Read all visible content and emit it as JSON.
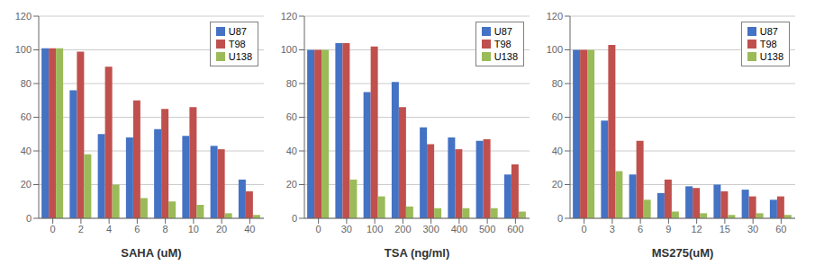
{
  "chart_data": [
    {
      "type": "bar",
      "x_label": "SAHA (uM)",
      "categories": [
        "0",
        "2",
        "4",
        "6",
        "8",
        "10",
        "20",
        "40"
      ],
      "series": [
        {
          "name": "U87",
          "color": "#4472C4",
          "values": [
            101,
            76,
            50,
            48,
            53,
            49,
            43,
            23
          ]
        },
        {
          "name": "T98",
          "color": "#C0504D",
          "values": [
            101,
            99,
            90,
            70,
            65,
            66,
            41,
            16
          ]
        },
        {
          "name": "U138",
          "color": "#9BBB59",
          "values": [
            101,
            38,
            20,
            12,
            10,
            8,
            3,
            2
          ]
        }
      ],
      "ylim": [
        0,
        120
      ],
      "yticks": [
        0,
        20,
        40,
        60,
        80,
        100,
        120
      ],
      "grid": true,
      "legend": "upper right"
    },
    {
      "type": "bar",
      "x_label": "TSA (ng/ml)",
      "categories": [
        "0",
        "30",
        "100",
        "200",
        "300",
        "400",
        "500",
        "600"
      ],
      "series": [
        {
          "name": "U87",
          "color": "#4472C4",
          "values": [
            100,
            104,
            75,
            81,
            54,
            48,
            46,
            26
          ]
        },
        {
          "name": "T98",
          "color": "#C0504D",
          "values": [
            100,
            104,
            102,
            66,
            44,
            41,
            47,
            32
          ]
        },
        {
          "name": "U138",
          "color": "#9BBB59",
          "values": [
            100,
            23,
            13,
            7,
            6,
            6,
            6,
            4
          ]
        }
      ],
      "ylim": [
        0,
        120
      ],
      "yticks": [
        0,
        20,
        40,
        60,
        80,
        100,
        120
      ],
      "grid": true,
      "legend": "upper right"
    },
    {
      "type": "bar",
      "x_label": "MS275(uM)",
      "categories": [
        "0",
        "3",
        "6",
        "9",
        "12",
        "15",
        "30",
        "60"
      ],
      "series": [
        {
          "name": "U87",
          "color": "#4472C4",
          "values": [
            100,
            58,
            26,
            15,
            19,
            20,
            17,
            11
          ]
        },
        {
          "name": "T98",
          "color": "#C0504D",
          "values": [
            100,
            103,
            46,
            23,
            18,
            16,
            13,
            13
          ]
        },
        {
          "name": "U138",
          "color": "#9BBB59",
          "values": [
            100,
            28,
            11,
            4,
            3,
            2,
            3,
            2
          ]
        }
      ],
      "ylim": [
        0,
        120
      ],
      "yticks": [
        0,
        20,
        40,
        60,
        80,
        100,
        120
      ],
      "grid": true,
      "legend": "upper right"
    }
  ]
}
